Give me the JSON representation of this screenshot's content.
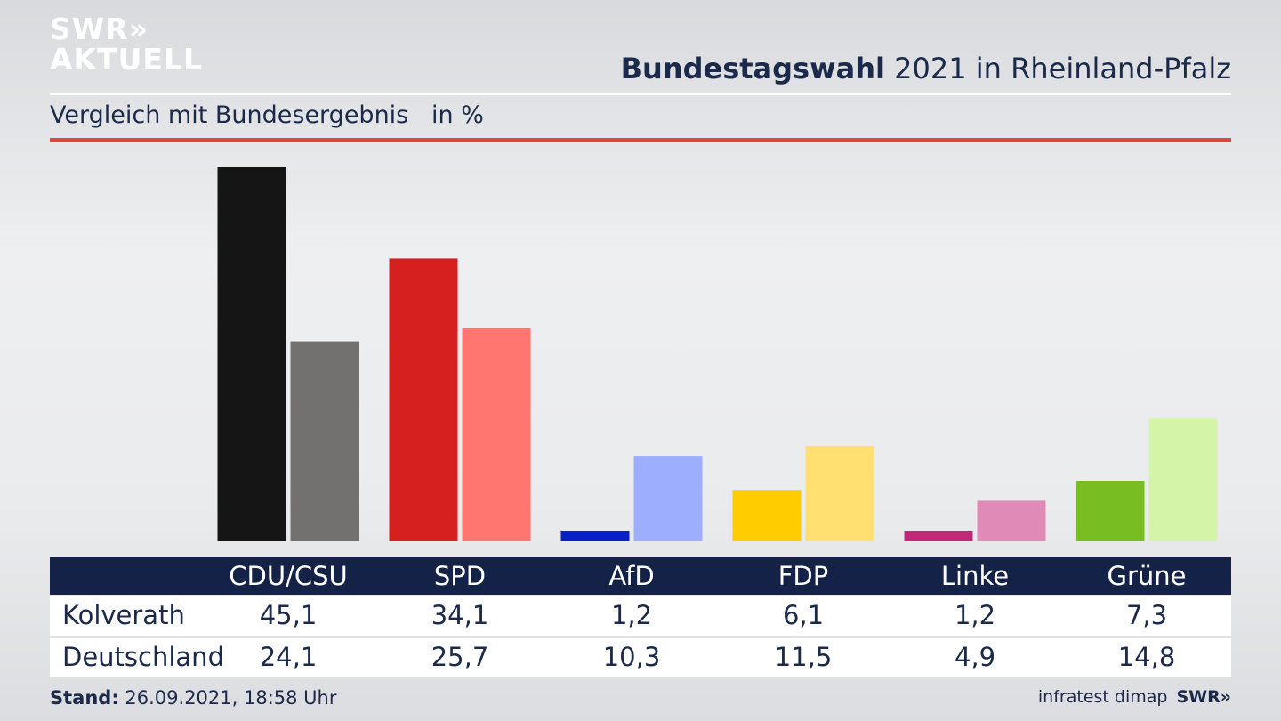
{
  "brand": {
    "line1": "SWR»",
    "line2": "AKTUELL",
    "footer_logo": "SWR»"
  },
  "title": {
    "bold": "Bundestagswahl",
    "rest": " 2021 in Rheinland-Pfalz"
  },
  "subtitle": "Vergleich mit Bundesergebnis   in %",
  "footer": {
    "stand_label": "Stand:",
    "stand_value": " 26.09.2021, 18:58 Uhr",
    "source": "infratest dimap"
  },
  "chart_data": {
    "type": "bar",
    "categories": [
      "CDU/CSU",
      "SPD",
      "AfD",
      "FDP",
      "Linke",
      "Grüne"
    ],
    "series": [
      {
        "name": "Kolverath",
        "values": [
          45.1,
          34.1,
          1.2,
          6.1,
          1.2,
          7.3
        ],
        "display": [
          "45,1",
          "34,1",
          "1,2",
          "6,1",
          "1,2",
          "7,3"
        ]
      },
      {
        "name": "Deutschland",
        "values": [
          24.1,
          25.7,
          10.3,
          11.5,
          4.9,
          14.8
        ],
        "display": [
          "24,1",
          "25,7",
          "10,3",
          "11,5",
          "4,9",
          "14,8"
        ]
      }
    ],
    "colors": {
      "primary": [
        "#151515",
        "#d62020",
        "#0b1fc9",
        "#ffcc00",
        "#c2287a",
        "#78bd21"
      ],
      "secondary": [
        "#72716f",
        "#ff7570",
        "#9eaeff",
        "#ffe070",
        "#e08ab8",
        "#d4f5a8"
      ]
    },
    "ylim": [
      0,
      45.1
    ]
  },
  "colors": {
    "header_bg": "#152247",
    "accent_red": "#d9483a",
    "text": "#1b2a4a"
  }
}
